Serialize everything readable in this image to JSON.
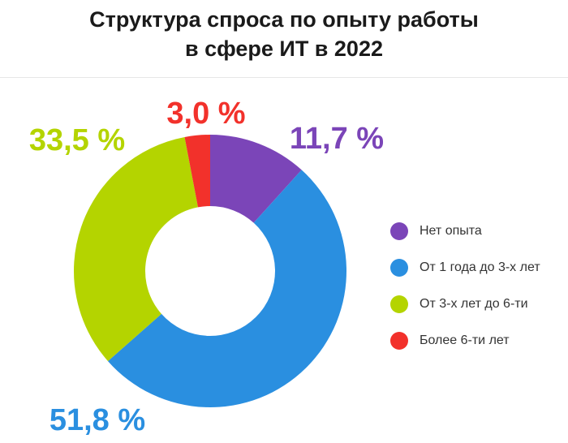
{
  "title_line1": "Структура спроса по опыту работы",
  "title_line2": "в сфере ИТ в 2022",
  "chart_data": {
    "type": "pie",
    "title": "Структура спроса по опыту работы в сфере ИТ в 2022",
    "categories": [
      "Нет опыта",
      "От 1 года до 3-х лет",
      "От 3-х лет до 6-ти",
      "Более 6-ти лет"
    ],
    "values": [
      11.7,
      51.8,
      33.5,
      3.0
    ],
    "data_labels": [
      "11,7 %",
      "51,8 %",
      "33,5 %",
      "3,0 %"
    ],
    "colors": [
      "#7b45b8",
      "#2a8fe0",
      "#b4d400",
      "#f2312b"
    ],
    "donut": true,
    "legend_position": "right"
  }
}
